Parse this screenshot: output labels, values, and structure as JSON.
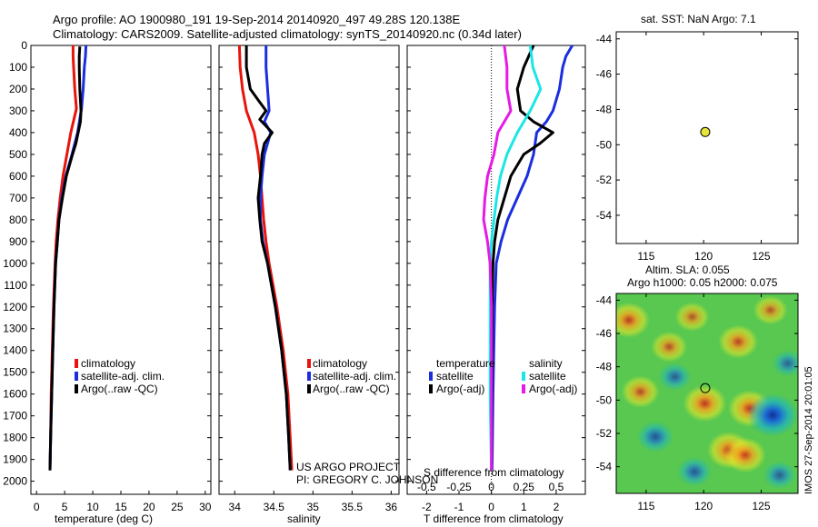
{
  "titles": {
    "line1": "Argo profile: AO 1900980_191 19-Sep-2014 20140920_497 49.28S 120.138E",
    "line2": "Climatology: CARS2009. Satellite-adjusted climatology: synTS_20140920.nc (0.34d later)"
  },
  "credit": {
    "line1": "US ARGO PROJECT",
    "line2": "PI: GREGORY C. JOHNSON"
  },
  "side_label": "IMOS 27-Sep-2014 20:01:05",
  "colors": {
    "climatology": "#e8140c",
    "satellite": "#1a2ee0",
    "argo": "#000000",
    "sat_salinity": "#1ae6e6",
    "argo_salinity": "#e61ae6"
  },
  "chart_data": [
    {
      "type": "line",
      "xlabel": "temperature (deg C)",
      "xlim": [
        -1,
        31
      ],
      "ylim": [
        2060,
        0
      ],
      "xticks": [
        0,
        5,
        10,
        15,
        20,
        25,
        30
      ],
      "yticks": [
        0,
        100,
        200,
        300,
        400,
        500,
        600,
        700,
        800,
        900,
        1000,
        1100,
        1200,
        1300,
        1400,
        1500,
        1600,
        1700,
        1800,
        1900,
        2000
      ],
      "legend": {
        "placement": "center-right",
        "entries": [
          "climatology",
          "satellite-adj. clim.",
          "Argo(..raw -QC)"
        ]
      },
      "series": [
        {
          "name": "climatology",
          "color": "#e8140c",
          "depth": [
            0,
            50,
            100,
            200,
            290,
            400,
            500,
            600,
            700,
            800,
            900,
            1000,
            1200,
            1400,
            1600,
            1800,
            1950
          ],
          "values": [
            6.5,
            6.5,
            6.6,
            6.8,
            7.1,
            6.1,
            5.4,
            4.7,
            4.2,
            3.8,
            3.5,
            3.3,
            3.0,
            2.8,
            2.6,
            2.5,
            2.4
          ]
        },
        {
          "name": "satellite-adj. clim.",
          "color": "#1a2ee0",
          "depth": [
            0,
            50,
            100,
            200,
            290,
            400,
            500,
            600,
            700,
            800,
            900,
            1000,
            1200,
            1400,
            1600,
            1800,
            1950
          ],
          "values": [
            8.8,
            8.7,
            8.5,
            8.3,
            8.0,
            7.3,
            6.3,
            5.2,
            4.5,
            4.0,
            3.7,
            3.4,
            3.1,
            2.9,
            2.7,
            2.5,
            2.4
          ]
        },
        {
          "name": "Argo(..raw -QC)",
          "color": "#000000",
          "depth": [
            5,
            50,
            100,
            200,
            300,
            350,
            400,
            450,
            500,
            600,
            700,
            800,
            900,
            1000,
            1200,
            1400,
            1600,
            1800,
            1950
          ],
          "values": [
            7.7,
            7.6,
            7.6,
            7.7,
            7.9,
            7.8,
            7.4,
            7.0,
            6.4,
            5.3,
            4.6,
            4.0,
            3.7,
            3.4,
            3.1,
            2.9,
            2.7,
            2.5,
            2.4
          ]
        }
      ]
    },
    {
      "type": "line",
      "xlabel": "salinity",
      "xlim": [
        33.8,
        36.1
      ],
      "ylim": [
        2060,
        0
      ],
      "xticks": [
        34,
        34.5,
        35,
        35.5,
        36
      ],
      "legend": {
        "placement": "center-right",
        "entries": [
          "climatology",
          "satellite-adj. clim.",
          "Argo(..raw -QC)"
        ]
      },
      "series": [
        {
          "name": "climatology",
          "color": "#e8140c",
          "depth": [
            0,
            100,
            200,
            300,
            400,
            500,
            600,
            700,
            800,
            900,
            1000,
            1200,
            1400,
            1600,
            1800,
            1950
          ],
          "values": [
            34.06,
            34.07,
            34.1,
            34.15,
            34.25,
            34.3,
            34.33,
            34.35,
            34.37,
            34.4,
            34.44,
            34.54,
            34.62,
            34.68,
            34.71,
            34.73
          ]
        },
        {
          "name": "satellite-adj. clim.",
          "color": "#1a2ee0",
          "depth": [
            0,
            100,
            200,
            300,
            350,
            400,
            500,
            600,
            700,
            800,
            900,
            1000,
            1200,
            1400,
            1600,
            1800,
            1950
          ],
          "values": [
            34.4,
            34.4,
            34.42,
            34.44,
            34.38,
            34.46,
            34.38,
            34.35,
            34.33,
            34.33,
            34.36,
            34.42,
            34.52,
            34.6,
            34.66,
            34.69,
            34.71
          ]
        },
        {
          "name": "Argo(..raw -QC)",
          "color": "#000000",
          "depth": [
            0,
            100,
            200,
            250,
            300,
            340,
            400,
            450,
            500,
            600,
            700,
            800,
            900,
            1000,
            1200,
            1400,
            1600,
            1800,
            1950
          ],
          "values": [
            34.15,
            34.15,
            34.2,
            34.3,
            34.4,
            34.32,
            34.48,
            34.38,
            34.35,
            34.33,
            34.3,
            34.32,
            34.35,
            34.42,
            34.52,
            34.6,
            34.66,
            34.69,
            34.71
          ]
        }
      ]
    },
    {
      "type": "line",
      "xlabel": "T difference from climatology",
      "xlabel_top": "S difference from climatology",
      "xlim": [
        -2.6,
        2.9
      ],
      "ylim": [
        2060,
        0
      ],
      "xticks": [
        -2,
        -1,
        0,
        1,
        2
      ],
      "xticks_top": [
        "-0.5",
        "-0.25",
        "0",
        "0.25",
        "0.5"
      ],
      "legend": {
        "placement": "center",
        "headers": [
          "temperature",
          "salinity"
        ],
        "entries": [
          "satellite",
          "Argo(-adj)",
          "satellite",
          "Argo(-adj)"
        ]
      },
      "series": [
        {
          "name": "satellite",
          "group": "temperature",
          "color": "#1a2ee0",
          "depth": [
            0,
            50,
            100,
            200,
            300,
            350,
            400,
            500,
            600,
            700,
            800,
            900,
            1000,
            1200,
            1600,
            1950
          ],
          "values": [
            2.5,
            2.3,
            2.2,
            2.1,
            1.9,
            1.7,
            1.4,
            1.3,
            1.1,
            0.8,
            0.5,
            0.3,
            0.15,
            0.1,
            0.05,
            0.02
          ]
        },
        {
          "name": "Argo(-adj)",
          "group": "temperature",
          "color": "#000000",
          "depth": [
            0,
            100,
            200,
            300,
            350,
            400,
            450,
            500,
            600,
            700,
            800,
            900,
            1000,
            1200,
            1600,
            1950
          ],
          "values": [
            1.3,
            1.0,
            0.8,
            0.9,
            1.3,
            1.9,
            1.5,
            1.0,
            0.6,
            0.4,
            0.2,
            0.1,
            0.05,
            0.02,
            0.01,
            0.0
          ]
        },
        {
          "name": "satellite",
          "group": "salinity",
          "color": "#1ae6e6",
          "depth": [
            0,
            100,
            150,
            200,
            300,
            400,
            500,
            600,
            700,
            800,
            900,
            1000,
            1200,
            1600,
            1950
          ],
          "values": [
            0.3,
            0.32,
            0.35,
            0.38,
            0.3,
            0.2,
            0.12,
            0.07,
            0.04,
            0.02,
            0.0,
            -0.01,
            -0.01,
            -0.01,
            0.0
          ]
        },
        {
          "name": "Argo(-adj)",
          "group": "salinity",
          "color": "#e61ae6",
          "depth": [
            0,
            100,
            200,
            300,
            400,
            500,
            600,
            700,
            800,
            900,
            1000,
            1200,
            1600,
            1950
          ],
          "values": [
            0.1,
            0.12,
            0.12,
            0.15,
            0.05,
            0.02,
            -0.03,
            -0.05,
            -0.06,
            -0.03,
            -0.01,
            0.0,
            0.0,
            0.0
          ]
        }
      ]
    },
    {
      "type": "scatter",
      "title": "sat. SST: NaN Argo: 7.1",
      "xlim": [
        112.4,
        128.2
      ],
      "ylim": [
        -55.6,
        -43.6
      ],
      "xticks": [
        115,
        120,
        125
      ],
      "yticks": [
        -44,
        -46,
        -48,
        -50,
        -52,
        -54
      ],
      "points": [
        {
          "x": 120.138,
          "y": -49.28,
          "color": "#e6e63a"
        }
      ]
    },
    {
      "type": "heatmap",
      "title": "Altim. SLA: 0.055",
      "subtitle": "Argo h1000: 0.05 h2000: 0.075",
      "xlim": [
        112.4,
        128.2
      ],
      "ylim": [
        -55.6,
        -43.6
      ],
      "xticks": [
        115,
        120,
        125
      ],
      "yticks": [
        -44,
        -46,
        -48,
        -50,
        -52,
        -54
      ],
      "points": [
        {
          "x": 120.138,
          "y": -49.28
        }
      ],
      "blobs": [
        {
          "x": 113.5,
          "y": -45.2,
          "v": 0.9
        },
        {
          "x": 117.0,
          "y": -46.8,
          "v": 0.6
        },
        {
          "x": 119.0,
          "y": -45.0,
          "v": 0.5
        },
        {
          "x": 123.0,
          "y": -46.5,
          "v": 0.8
        },
        {
          "x": 125.8,
          "y": -44.6,
          "v": 0.5
        },
        {
          "x": 114.5,
          "y": -49.5,
          "v": 0.7
        },
        {
          "x": 120.1,
          "y": -50.2,
          "v": 1.0
        },
        {
          "x": 124.0,
          "y": -50.5,
          "v": 1.0
        },
        {
          "x": 122.2,
          "y": -53.0,
          "v": 1.0
        },
        {
          "x": 123.6,
          "y": -53.3,
          "v": 0.9
        },
        {
          "x": 126.0,
          "y": -50.9,
          "v": -1.4
        },
        {
          "x": 115.8,
          "y": -52.2,
          "v": -0.6
        },
        {
          "x": 119.2,
          "y": -54.3,
          "v": -0.5
        },
        {
          "x": 117.5,
          "y": -48.6,
          "v": -0.4
        },
        {
          "x": 126.6,
          "y": -54.5,
          "v": -0.4
        },
        {
          "x": 127.3,
          "y": -47.8,
          "v": -0.3
        }
      ]
    }
  ]
}
